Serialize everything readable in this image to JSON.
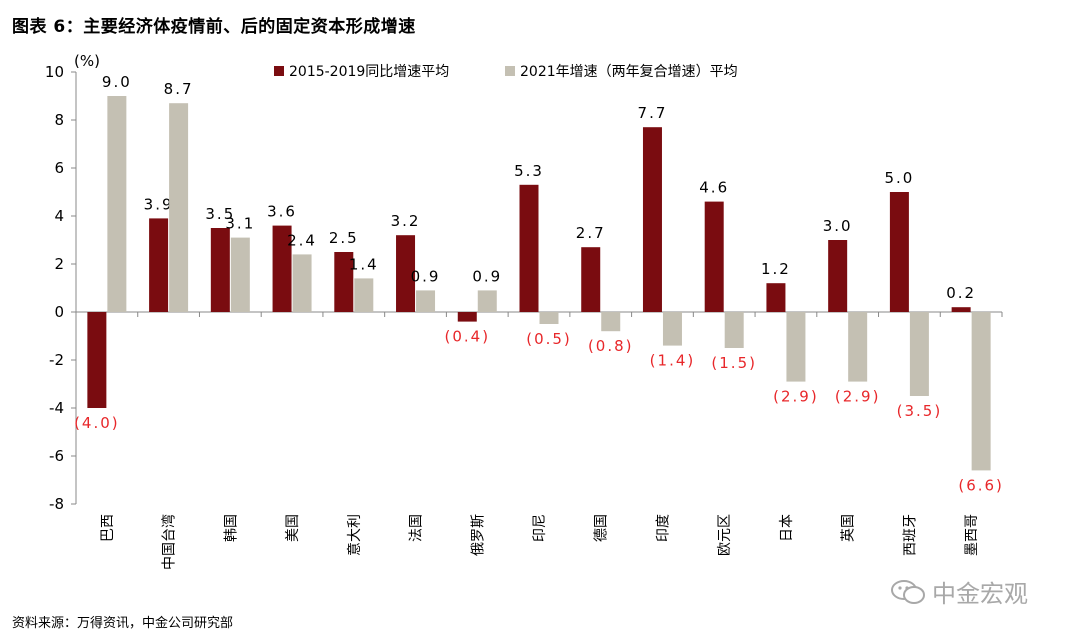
{
  "title": "图表 6：主要经济体疫情前、后的固定资本形成增速",
  "source": "资料来源：万得资讯，中金公司研究部",
  "watermark": "中金宏观",
  "chart_data": {
    "type": "bar",
    "unit_label": "(%)",
    "categories": [
      "巴西",
      "中国台湾",
      "韩国",
      "美国",
      "意大利",
      "法国",
      "俄罗斯",
      "印尼",
      "德国",
      "印度",
      "欧元区",
      "日本",
      "英国",
      "西班牙",
      "墨西哥"
    ],
    "series": [
      {
        "name": "2015-2019同比增速平均",
        "color": "#7a0c10",
        "values": [
          -4.0,
          3.9,
          3.5,
          3.6,
          2.5,
          3.2,
          -0.4,
          5.3,
          2.7,
          7.7,
          4.6,
          1.2,
          3.0,
          5.0,
          0.2
        ],
        "labels": [
          "(4.0)",
          "3.9",
          "3.5",
          "3.6",
          "2.5",
          "3.2",
          "(0.4)",
          "5.3",
          "2.7",
          "7.7",
          "4.6",
          "1.2",
          "3.0",
          "5.0",
          "0.2"
        ]
      },
      {
        "name": "2021年增速（两年复合增速）平均",
        "color": "#c4c0b3",
        "values": [
          9.0,
          8.7,
          3.1,
          2.4,
          1.4,
          0.9,
          0.9,
          -0.5,
          -0.8,
          -1.4,
          -1.5,
          -2.9,
          -2.9,
          -3.5,
          -6.6
        ],
        "labels": [
          "9.0",
          "8.7",
          "3.1",
          "2.4",
          "1.4",
          "0.9",
          "0.9",
          "(0.5)",
          "(0.8)",
          "(1.4)",
          "(1.5)",
          "(2.9)",
          "(2.9)",
          "(3.5)",
          "(6.6)"
        ]
      }
    ],
    "negative_label_color": "#e8272a",
    "ylim": [
      -8,
      10
    ],
    "yticks": [
      "10",
      "8",
      "6",
      "4",
      "2",
      "0",
      "-2",
      "-4",
      "-6",
      "-8"
    ],
    "ytick_values": [
      10,
      8,
      6,
      4,
      2,
      0,
      -2,
      -4,
      -6,
      -8
    ],
    "legend_position": "top"
  }
}
